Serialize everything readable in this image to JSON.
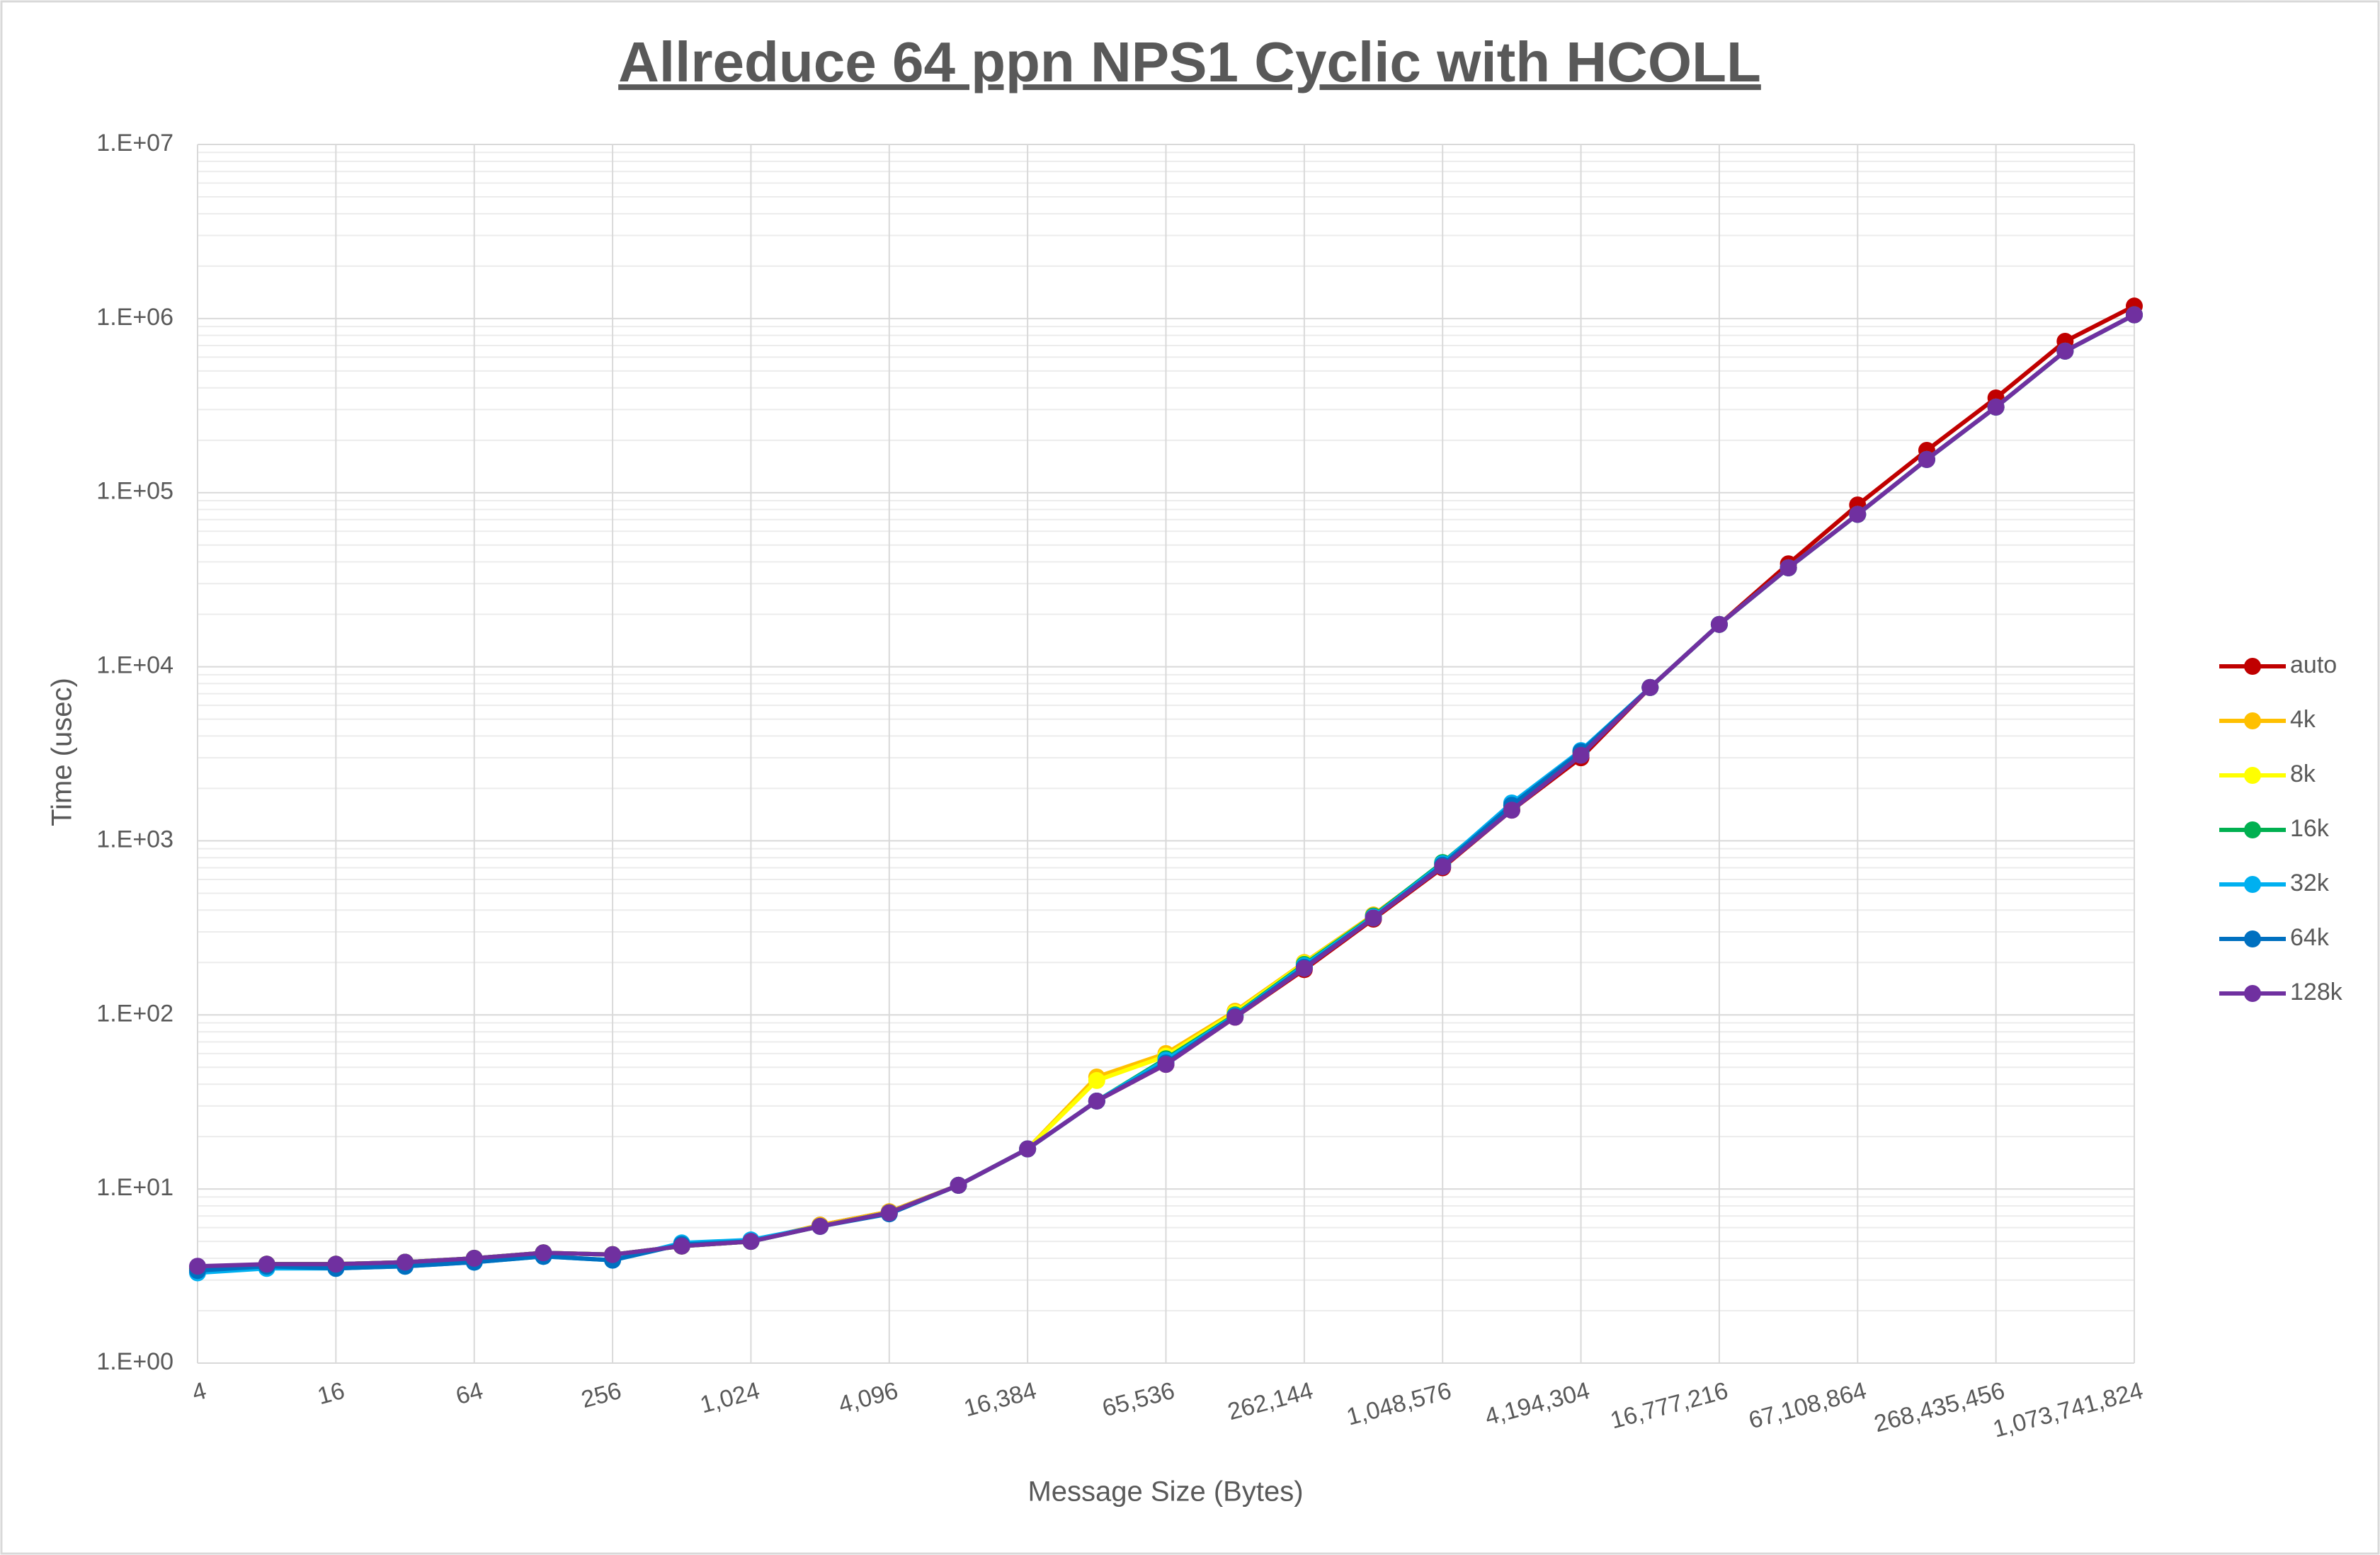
{
  "chart_data": {
    "type": "line",
    "title": "Allreduce 64 ppn NPS1 Cyclic with HCOLL",
    "x_label": "Message Size (Bytes)",
    "y_label": "Time (usec)",
    "categories": [
      "4",
      null,
      "16",
      null,
      "64",
      null,
      "256",
      null,
      "1,024",
      null,
      "4,096",
      null,
      "16,384",
      null,
      "65,536",
      null,
      "262,144",
      null,
      "1,048,576",
      null,
      "4,194,304",
      null,
      "16,777,216",
      null,
      "67,108,864",
      null,
      "268,435,456",
      null,
      "1,073,741,824"
    ],
    "ylim": [
      1,
      10000000
    ],
    "yticks": [
      {
        "value": 1,
        "label": "1.E+00"
      },
      {
        "value": 10,
        "label": "1.E+01"
      },
      {
        "value": 100,
        "label": "1.E+02"
      },
      {
        "value": 1000,
        "label": "1.E+03"
      },
      {
        "value": 10000,
        "label": "1.E+04"
      },
      {
        "value": 100000,
        "label": "1.E+05"
      },
      {
        "value": 1000000,
        "label": "1.E+06"
      },
      {
        "value": 10000000,
        "label": "1.E+07"
      }
    ],
    "log_scale_y": true,
    "grid": true,
    "minor_grid": true,
    "legend": "right",
    "series": [
      {
        "name": "auto",
        "color": "#C00000",
        "values": [
          3.5,
          3.7,
          3.7,
          3.8,
          4.0,
          4.3,
          4.2,
          4.7,
          5.0,
          6.2,
          7.4,
          10.5,
          17,
          32,
          52,
          97,
          182,
          355,
          700,
          1500,
          3000,
          7600,
          17500,
          39000,
          85000,
          175000,
          350000,
          740000,
          1180000
        ]
      },
      {
        "name": "4k",
        "color": "#FFC000",
        "values": [
          3.5,
          3.7,
          3.7,
          3.8,
          4.0,
          4.3,
          4.2,
          4.7,
          5.0,
          6.2,
          7.4,
          10.5,
          17,
          44,
          60,
          105,
          200,
          375,
          740,
          1550,
          3200,
          7600,
          17500,
          37000,
          75000,
          155000,
          310000,
          650000,
          1050000
        ]
      },
      {
        "name": "8k",
        "color": "#FFFF00",
        "values": [
          3.5,
          3.7,
          3.7,
          3.8,
          4.0,
          4.3,
          4.2,
          4.7,
          5.0,
          6.1,
          7.3,
          10.5,
          17,
          42,
          58,
          103,
          198,
          370,
          735,
          1550,
          3200,
          7600,
          17500,
          37000,
          75000,
          155000,
          310000,
          650000,
          1050000
        ]
      },
      {
        "name": "16k",
        "color": "#00B050",
        "values": [
          3.5,
          3.7,
          3.7,
          3.8,
          4.0,
          4.3,
          4.2,
          4.7,
          5.0,
          6.1,
          7.3,
          10.5,
          17,
          32,
          56,
          100,
          195,
          370,
          750,
          1600,
          3250,
          7600,
          17500,
          37000,
          75000,
          155000,
          310000,
          650000,
          1050000
        ]
      },
      {
        "name": "32k",
        "color": "#00B0F0",
        "values": [
          3.3,
          3.5,
          3.5,
          3.6,
          3.8,
          4.1,
          3.9,
          4.9,
          5.1,
          6.1,
          7.3,
          10.5,
          17,
          32,
          55,
          99,
          192,
          365,
          740,
          1650,
          3300,
          7600,
          17500,
          37000,
          75000,
          155000,
          310000,
          650000,
          1050000
        ]
      },
      {
        "name": "64k",
        "color": "#0070C0",
        "values": [
          3.4,
          3.6,
          3.5,
          3.6,
          3.8,
          4.1,
          3.9,
          4.8,
          5.0,
          6.1,
          7.2,
          10.5,
          17,
          32,
          53,
          98,
          188,
          360,
          725,
          1600,
          3250,
          7600,
          17500,
          37000,
          75000,
          155000,
          310000,
          650000,
          1050000
        ]
      },
      {
        "name": "128k",
        "color": "#7030A0",
        "values": [
          3.6,
          3.7,
          3.7,
          3.8,
          4.0,
          4.3,
          4.2,
          4.7,
          5.0,
          6.1,
          7.3,
          10.5,
          17,
          32,
          52,
          97,
          185,
          360,
          710,
          1500,
          3100,
          7600,
          17500,
          37000,
          75000,
          155000,
          310000,
          650000,
          1050000
        ]
      }
    ]
  }
}
